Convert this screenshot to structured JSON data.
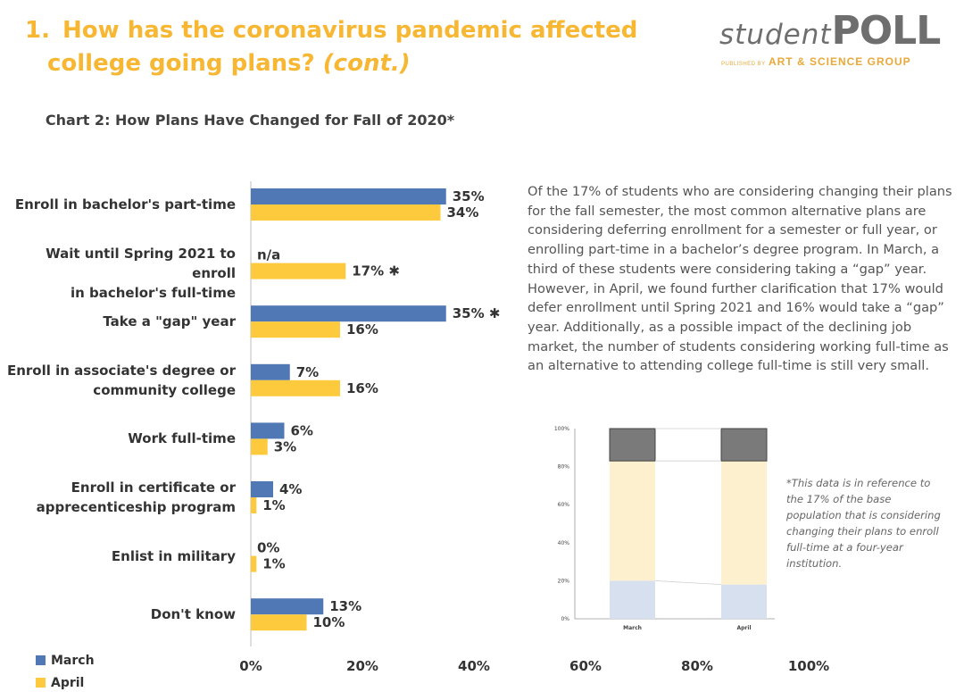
{
  "header": {
    "number": "1.",
    "title_line1": "How has the coronavirus pandemic affected",
    "title_line2": "college going plans?",
    "title_cont": "(cont.)"
  },
  "logo": {
    "word1": "student",
    "word2": "POLL",
    "sub_prefix": "PUBLISHED BY",
    "sub_org": "ART & SCIENCE GROUP"
  },
  "body_text": "Of the 17% of students who are considering changing their plans for the fall semester, the most common alternative plans are considering deferring enrollment for a semester or full year, or enrolling part-time in a bachelor’s degree program. In March, a third of these students were considering taking a “gap” year. However, in April, we found further clarification that 17% would defer enrollment until Spring 2021 and 16% would take a “gap” year. Additionally, as a possible impact of the declining job market, the number of students considering working full-time as an alternative to attending college full-time is still very small.",
  "note_text": "*This data is in reference to the 17% of the base  population that is considering changing their plans to enroll full-time at a four-year institution.",
  "colors": {
    "march": "#4f78b5",
    "april": "#fdca3e",
    "accent": "#f7b733"
  },
  "chart_data": [
    {
      "type": "bar",
      "orientation": "horizontal",
      "title": "Chart 2: How Plans Have Changed for Fall of 2020*",
      "categories": [
        "Enroll in bachelor's part-time",
        "Wait until Spring 2021 to enroll in bachelor's full-time",
        "Take a \"gap\" year",
        "Enroll in associate's degree or community college",
        "Work full-time",
        "Enroll in certificate or apprecenticeship program",
        "Enlist in military",
        "Don't know"
      ],
      "category_lines": [
        [
          "Enroll in bachelor's part-time"
        ],
        [
          "Wait until Spring 2021 to enroll",
          "in bachelor's full-time"
        ],
        [
          "Take a \"gap\" year"
        ],
        [
          "Enroll in associate's degree or",
          "community college"
        ],
        [
          "Work full-time"
        ],
        [
          "Enroll in certificate or",
          "apprecenticeship program"
        ],
        [
          "Enlist in military"
        ],
        [
          "Don't know"
        ]
      ],
      "series": [
        {
          "name": "March",
          "values": [
            35,
            null,
            35,
            7,
            6,
            4,
            0,
            13
          ],
          "labels": [
            "35%",
            "n/a",
            "35% ✱",
            "7%",
            "6%",
            "4%",
            "0%",
            "13%"
          ]
        },
        {
          "name": "April",
          "values": [
            34,
            17,
            16,
            16,
            3,
            1,
            1,
            10
          ],
          "labels": [
            "34%",
            "17% ✱",
            "16%",
            "16%",
            "3%",
            "1%",
            "1%",
            "10%"
          ]
        }
      ],
      "xlim": [
        0,
        100
      ],
      "xticks": [
        "0%",
        "20%",
        "40%",
        "60%",
        "80%",
        "100%"
      ],
      "legend": "bottom-left",
      "grid": false
    },
    {
      "type": "bar",
      "stacked": true,
      "categories": [
        "March",
        "April"
      ],
      "series": [
        {
          "values": [
            20,
            18
          ]
        },
        {
          "values": [
            63,
            65
          ]
        },
        {
          "values": [
            17,
            17
          ]
        }
      ],
      "ylim": [
        0,
        100
      ],
      "yticks": [
        "0%",
        "20%",
        "40%",
        "60%",
        "80%",
        "100%"
      ],
      "grid": false
    }
  ]
}
